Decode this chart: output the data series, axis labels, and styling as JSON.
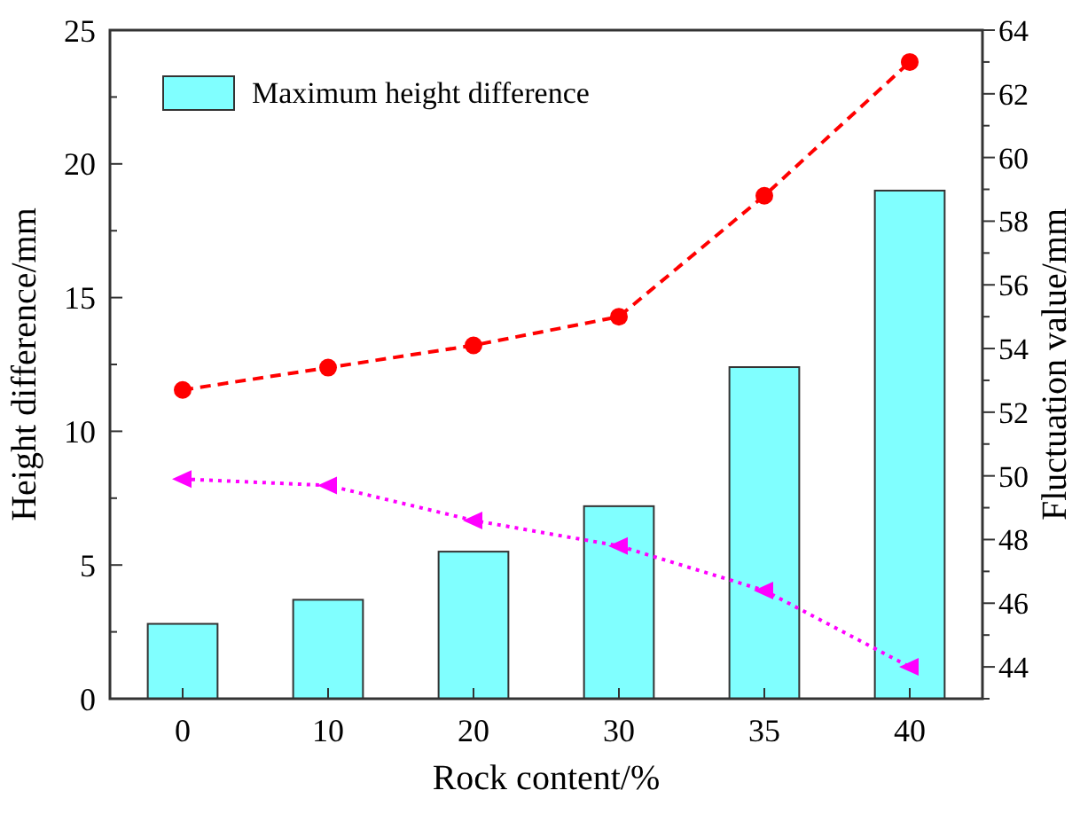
{
  "chart_data": {
    "type": "bar",
    "xlabel": "Rock content/%",
    "ylabel": "Height difference/mm",
    "y2label": "Fluctuation value/mm",
    "categories": [
      "0",
      "10",
      "20",
      "30",
      "35",
      "40"
    ],
    "series": [
      {
        "name": "Maximum height difference",
        "color": "#80ffff",
        "values": [
          2.8,
          3.7,
          5.5,
          7.2,
          12.4,
          19
        ]
      },
      {
        "type": "line",
        "axis": "y2",
        "color": "#ff0000",
        "marker": "circle",
        "line_style": "dashed",
        "values": [
          52.7,
          53.4,
          54.1,
          55.0,
          58.8,
          63.0
        ]
      },
      {
        "type": "line",
        "axis": "y2",
        "color": "#ff00ff",
        "marker": "triangle",
        "line_style": "dotted",
        "values": [
          49.9,
          49.7,
          48.6,
          47.8,
          46.4,
          44.0
        ]
      }
    ],
    "ylim": [
      0,
      25
    ],
    "yticks": [
      0,
      {
        "value": 2.5,
        "label": null
      },
      5,
      {
        "value": 7.5,
        "label": null
      },
      10,
      {
        "value": 12.5,
        "label": null
      },
      15,
      {
        "value": 17.5,
        "label": null
      },
      20,
      {
        "value": 22.5,
        "label": null
      },
      25
    ],
    "y2lim": [
      43,
      64
    ],
    "y2ticks": [
      {
        "value": 43,
        "label": null
      },
      44,
      {
        "value": 45,
        "label": null
      },
      46,
      {
        "value": 47,
        "label": null
      },
      48,
      {
        "value": 49,
        "label": null
      },
      50,
      {
        "value": 51,
        "label": null
      },
      52,
      {
        "value": 53,
        "label": null
      },
      54,
      {
        "value": 55,
        "label": null
      },
      56,
      {
        "value": 57,
        "label": null
      },
      58,
      {
        "value": 59,
        "label": null
      },
      60,
      {
        "value": 61,
        "label": null
      },
      62,
      {
        "value": 63,
        "label": null
      },
      64
    ],
    "legend": "top left",
    "grid": false
  }
}
